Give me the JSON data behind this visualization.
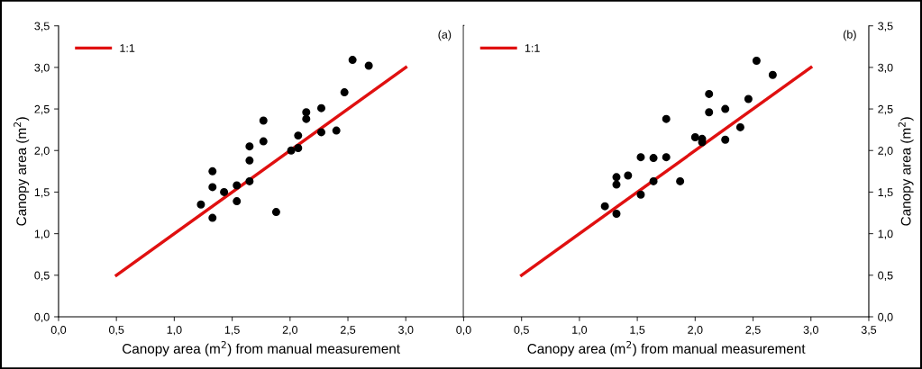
{
  "chart_data": [
    {
      "type": "scatter",
      "xlabel": "Canopy area (m$^{2}$) from manual measurement",
      "ylabel": "Canopy area (m$^{2}$)",
      "annotations": [
        "(a)"
      ],
      "xlim": [
        0,
        3.5
      ],
      "ylim": [
        0,
        3.5
      ],
      "xticks": [
        {
          "value": 0,
          "label": "0,0"
        },
        {
          "value": 0.5,
          "label": "0,5"
        },
        {
          "value": 1,
          "label": "1,0"
        },
        {
          "value": 1.5,
          "label": "1,5"
        },
        {
          "value": 2,
          "label": "2,0"
        },
        {
          "value": 2.5,
          "label": "2,5"
        },
        {
          "value": 3,
          "label": "3,0"
        }
      ],
      "yticks": [
        {
          "value": 0,
          "label": "0,0"
        },
        {
          "value": 0.5,
          "label": "0,5"
        },
        {
          "value": 1,
          "label": "1,0"
        },
        {
          "value": 1.5,
          "label": "1,5"
        },
        {
          "value": 2,
          "label": "2,0"
        },
        {
          "value": 2.5,
          "label": "2,5"
        },
        {
          "value": 3,
          "label": "3,0"
        },
        {
          "value": 3.5,
          "label": "3,5"
        }
      ],
      "legend": "top left",
      "grid": false,
      "series": [
        {
          "marker": "circle",
          "color": "#000000",
          "x": [
            1.23,
            1.33,
            1.33,
            1.33,
            1.43,
            1.54,
            1.54,
            1.65,
            1.65,
            1.65,
            1.77,
            1.77,
            1.88,
            2.01,
            2.07,
            2.07,
            2.14,
            2.14,
            2.27,
            2.27,
            2.4,
            2.47,
            2.54,
            2.68
          ],
          "values": [
            1.35,
            1.56,
            1.75,
            1.19,
            1.5,
            1.58,
            1.39,
            1.63,
            1.88,
            2.05,
            2.11,
            2.36,
            1.26,
            2.0,
            2.03,
            2.18,
            2.38,
            2.46,
            2.22,
            2.51,
            2.24,
            2.7,
            3.09,
            3.02
          ]
        },
        {
          "type": "line",
          "marker": "none",
          "name": "1:1",
          "color": "#e01010",
          "x": [
            0.5,
            3.0
          ],
          "values": [
            0.5,
            3.0
          ]
        }
      ]
    },
    {
      "type": "scatter",
      "xlabel": "Canopy area (m$^{2}$) from manual measurement",
      "ylabel": "Canopy area (m$^{2}$)",
      "annotations": [
        "(b)"
      ],
      "xlim": [
        0,
        3.5
      ],
      "ylim": [
        0,
        3.5
      ],
      "xticks": [
        {
          "value": 0,
          "label": "0,0"
        },
        {
          "value": 0.5,
          "label": "0,5"
        },
        {
          "value": 1,
          "label": "1,0"
        },
        {
          "value": 1.5,
          "label": "1,5"
        },
        {
          "value": 2,
          "label": "2,0"
        },
        {
          "value": 2.5,
          "label": "2,5"
        },
        {
          "value": 3,
          "label": "3,0"
        },
        {
          "value": 3.5,
          "label": "3,5"
        }
      ],
      "yticks": [
        {
          "value": 0,
          "label": "0,0"
        },
        {
          "value": 0.5,
          "label": "0,5"
        },
        {
          "value": 1,
          "label": "1,0"
        },
        {
          "value": 1.5,
          "label": "1,5"
        },
        {
          "value": 2,
          "label": "2,0"
        },
        {
          "value": 2.5,
          "label": "2,5"
        },
        {
          "value": 3,
          "label": "3,0"
        },
        {
          "value": 3.5,
          "label": "3,5"
        }
      ],
      "legend": "top left",
      "grid": false,
      "series": [
        {
          "marker": "circle",
          "color": "#000000",
          "x": [
            1.22,
            1.32,
            1.32,
            1.32,
            1.42,
            1.53,
            1.53,
            1.64,
            1.64,
            1.75,
            1.75,
            1.87,
            2.0,
            2.06,
            2.06,
            2.12,
            2.12,
            2.26,
            2.26,
            2.39,
            2.46,
            2.53,
            2.67
          ],
          "values": [
            1.33,
            1.68,
            1.59,
            1.24,
            1.7,
            1.92,
            1.47,
            1.91,
            1.63,
            2.38,
            1.92,
            1.63,
            2.16,
            2.14,
            2.1,
            2.68,
            2.46,
            2.5,
            2.13,
            2.28,
            2.62,
            3.08,
            2.91
          ]
        },
        {
          "type": "line",
          "marker": "none",
          "name": "1:1",
          "color": "#e01010",
          "x": [
            0.5,
            3.0
          ],
          "values": [
            0.5,
            3.0
          ]
        }
      ]
    }
  ]
}
